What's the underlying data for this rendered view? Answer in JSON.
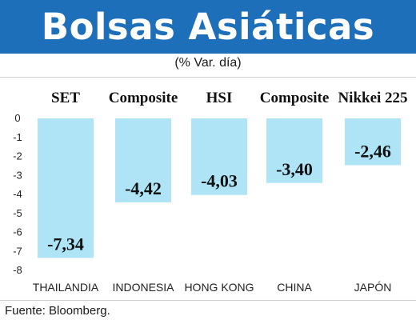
{
  "header": {
    "title": "Bolsas Asiáticas",
    "subtitle": "(% Var. día)"
  },
  "footer": {
    "source": "Fuente: Bloomberg."
  },
  "colors": {
    "banner": "#1e6fb9",
    "bar": "#aee4f6"
  },
  "chart_data": {
    "type": "bar",
    "title": "Bolsas Asiáticas",
    "subtitle": "(% Var. día)",
    "index_names": [
      "SET",
      "Composite",
      "HSI",
      "Composite",
      "Nikkei 225"
    ],
    "categories": [
      "THAILANDIA",
      "INDONESIA",
      "HONG KONG",
      "CHINA",
      "JAPÓN"
    ],
    "values": [
      -7.34,
      -4.42,
      -4.03,
      -3.4,
      -2.46
    ],
    "value_labels": [
      "-7,34",
      "-4,42",
      "-4,03",
      "-3,40",
      "-2,46"
    ],
    "y_ticks": [
      "0",
      "-1",
      "-2",
      "-3",
      "-4",
      "-5",
      "-6",
      "-7",
      "-8"
    ],
    "ylim": [
      -8,
      0
    ],
    "grid": false,
    "legend": "none"
  }
}
